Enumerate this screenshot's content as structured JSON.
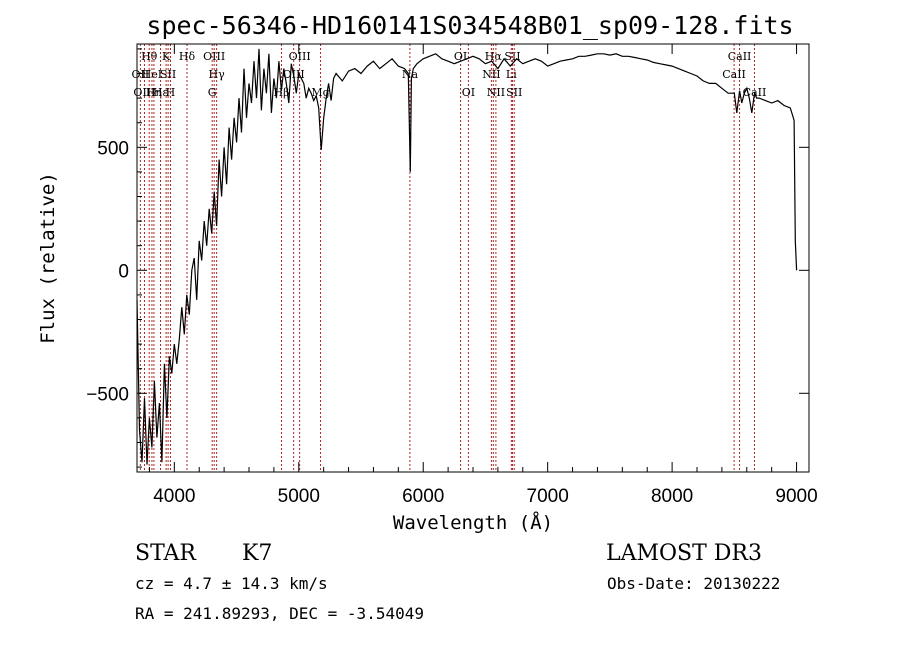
{
  "chart_data": {
    "type": "line",
    "title": "spec-56346-HD160141S034548B01_sp09-128.fits",
    "xlabel": "Wavelength (Å)",
    "ylabel": "Flux (relative)",
    "xlim": [
      3700,
      9100
    ],
    "ylim": [
      -820,
      920
    ],
    "x_ticks": [
      4000,
      5000,
      6000,
      7000,
      8000,
      9000
    ],
    "y_ticks": [
      -500,
      0,
      500
    ],
    "grid": false,
    "line_color": "#000000",
    "marker_color": "#b22222",
    "series": [
      {
        "name": "flux",
        "x": [
          3700,
          3720,
          3740,
          3760,
          3780,
          3800,
          3820,
          3840,
          3860,
          3880,
          3900,
          3920,
          3940,
          3960,
          3980,
          4000,
          4020,
          4040,
          4060,
          4080,
          4100,
          4120,
          4140,
          4160,
          4180,
          4200,
          4220,
          4240,
          4260,
          4280,
          4300,
          4320,
          4340,
          4360,
          4380,
          4400,
          4420,
          4440,
          4460,
          4480,
          4500,
          4520,
          4540,
          4560,
          4580,
          4600,
          4620,
          4640,
          4660,
          4680,
          4700,
          4720,
          4740,
          4760,
          4780,
          4800,
          4820,
          4840,
          4860,
          4880,
          4900,
          4920,
          4940,
          4960,
          4980,
          5000,
          5020,
          5040,
          5060,
          5080,
          5100,
          5120,
          5140,
          5160,
          5180,
          5200,
          5220,
          5240,
          5260,
          5280,
          5300,
          5350,
          5400,
          5450,
          5500,
          5550,
          5600,
          5650,
          5700,
          5750,
          5800,
          5850,
          5880,
          5890,
          5896,
          5905,
          5920,
          5950,
          6000,
          6050,
          6100,
          6150,
          6200,
          6250,
          6300,
          6350,
          6400,
          6450,
          6500,
          6550,
          6600,
          6650,
          6700,
          6750,
          6800,
          6850,
          6900,
          6950,
          7000,
          7050,
          7100,
          7150,
          7200,
          7250,
          7300,
          7350,
          7400,
          7450,
          7500,
          7550,
          7600,
          7650,
          7700,
          7750,
          7800,
          7850,
          7900,
          7950,
          8000,
          8050,
          8100,
          8150,
          8200,
          8250,
          8300,
          8350,
          8400,
          8450,
          8500,
          8520,
          8542,
          8560,
          8580,
          8600,
          8620,
          8640,
          8662,
          8680,
          8700,
          8750,
          8800,
          8850,
          8900,
          8950,
          8980,
          8990,
          9000
        ],
        "y": [
          -120,
          -650,
          -780,
          -520,
          -790,
          -600,
          -720,
          -450,
          -680,
          -540,
          -780,
          -380,
          -600,
          -350,
          -420,
          -300,
          -380,
          -280,
          -150,
          -260,
          -100,
          -180,
          0,
          50,
          -120,
          120,
          40,
          200,
          100,
          250,
          150,
          320,
          180,
          450,
          300,
          500,
          350,
          580,
          450,
          620,
          520,
          700,
          560,
          820,
          620,
          760,
          680,
          850,
          700,
          900,
          650,
          820,
          720,
          880,
          640,
          780,
          700,
          850,
          730,
          820,
          760,
          680,
          840,
          790,
          720,
          800,
          780,
          760,
          700,
          740,
          720,
          690,
          710,
          660,
          490,
          620,
          700,
          760,
          690,
          780,
          800,
          770,
          810,
          820,
          800,
          830,
          850,
          820,
          840,
          860,
          830,
          820,
          800,
          560,
          400,
          780,
          820,
          840,
          860,
          870,
          880,
          860,
          850,
          840,
          850,
          860,
          870,
          860,
          840,
          850,
          820,
          860,
          830,
          860,
          840,
          850,
          860,
          850,
          830,
          840,
          850,
          855,
          860,
          870,
          870,
          875,
          880,
          880,
          875,
          880,
          870,
          870,
          865,
          860,
          855,
          845,
          840,
          835,
          830,
          820,
          810,
          800,
          790,
          770,
          760,
          760,
          740,
          720,
          720,
          640,
          730,
          680,
          720,
          740,
          700,
          640,
          720,
          700,
          700,
          690,
          680,
          690,
          670,
          660,
          610,
          120,
          0
        ]
      }
    ],
    "markers": [
      {
        "label": "Hθ",
        "x": 3798,
        "row": 1
      },
      {
        "label": "OII",
        "x": 3727,
        "row": 2
      },
      {
        "label": "OIII",
        "x": 3760,
        "row": 3
      },
      {
        "label": "HeI",
        "x": 3820,
        "row": 2
      },
      {
        "label": "Hη",
        "x": 3836,
        "row": 3
      },
      {
        "label": "Hε",
        "x": 3889,
        "row": 3
      },
      {
        "label": "K",
        "x": 3934,
        "row": 1
      },
      {
        "label": "SII",
        "x": 3950,
        "row": 2
      },
      {
        "label": "H",
        "x": 3969,
        "row": 3
      },
      {
        "label": "Hδ",
        "x": 4102,
        "row": 1
      },
      {
        "label": "OIII",
        "x": 4320,
        "row": 1
      },
      {
        "label": "Hγ",
        "x": 4340,
        "row": 2
      },
      {
        "label": "G",
        "x": 4304,
        "row": 3
      },
      {
        "label": "OIII",
        "x": 5007,
        "row": 1
      },
      {
        "label": "OIII",
        "x": 4959,
        "row": 2
      },
      {
        "label": "Hβ",
        "x": 4861,
        "row": 3
      },
      {
        "label": "Mg",
        "x": 5175,
        "row": 3
      },
      {
        "label": "Na",
        "x": 5893,
        "row": 2
      },
      {
        "label": "OI",
        "x": 6300,
        "row": 1
      },
      {
        "label": "OI",
        "x": 6363,
        "row": 3
      },
      {
        "label": "Hα",
        "x": 6563,
        "row": 1
      },
      {
        "label": "SII",
        "x": 6717,
        "row": 1
      },
      {
        "label": "NII",
        "x": 6548,
        "row": 2
      },
      {
        "label": "Li",
        "x": 6708,
        "row": 2
      },
      {
        "label": "NII",
        "x": 6584,
        "row": 3
      },
      {
        "label": "SII",
        "x": 6731,
        "row": 3
      },
      {
        "label": "CaII",
        "x": 8542,
        "row": 1
      },
      {
        "label": "CaII",
        "x": 8498,
        "row": 2
      },
      {
        "label": "CaII",
        "x": 8662,
        "row": 3
      }
    ]
  },
  "info": {
    "class_label": "STAR",
    "subclass": "K7",
    "survey": "LAMOST DR3",
    "cz": "cz = 4.7 ± 14.3 km/s",
    "obs_date": "Obs-Date: 20130222",
    "radec": "RA = 241.89293, DEC =  -3.54049"
  }
}
